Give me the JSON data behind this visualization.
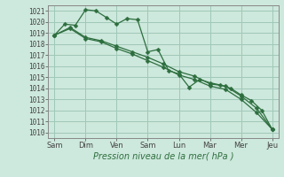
{
  "bg_color": "#cde8dc",
  "grid_color": "#a0c8b8",
  "line_color": "#2d6e3e",
  "xlabel": "Pression niveau de la mer( hPa )",
  "ylim": [
    1009.5,
    1021.5
  ],
  "yticks": [
    1010,
    1011,
    1012,
    1013,
    1014,
    1015,
    1016,
    1017,
    1018,
    1019,
    1020,
    1021
  ],
  "xtick_labels": [
    "Sam",
    "Dim",
    "Ven",
    "Sam",
    "Lun",
    "Mar",
    "Mer",
    "Jeu"
  ],
  "xtick_positions": [
    0,
    1,
    2,
    3,
    4,
    5,
    6,
    7
  ],
  "line1_x": [
    0,
    0.33,
    0.67,
    1.0,
    1.33,
    1.67,
    2.0,
    2.33,
    2.67,
    3.0,
    3.33,
    3.67,
    4.0,
    4.33,
    4.67,
    5.0,
    5.33,
    5.67,
    6.0,
    6.33,
    6.67,
    7.0
  ],
  "line1": [
    1018.8,
    1019.8,
    1019.7,
    1021.1,
    1021.0,
    1020.4,
    1019.8,
    1020.3,
    1020.2,
    1017.3,
    1017.5,
    1015.6,
    1015.3,
    1014.1,
    1014.8,
    1014.5,
    1014.3,
    1014.0,
    1013.4,
    1012.9,
    1012.0,
    1010.3
  ],
  "line2_x": [
    0,
    0.5,
    1.0,
    1.5,
    2.0,
    2.5,
    3.0,
    3.5,
    4.0,
    4.5,
    5.0,
    5.5,
    6.0,
    6.5,
    7.0
  ],
  "line2": [
    1018.8,
    1019.5,
    1018.6,
    1018.3,
    1017.8,
    1017.3,
    1016.8,
    1016.2,
    1015.5,
    1015.1,
    1014.4,
    1014.2,
    1013.3,
    1012.2,
    1010.3
  ],
  "line3_x": [
    0,
    0.5,
    1.0,
    1.5,
    2.0,
    2.5,
    3.0,
    3.5,
    4.0,
    4.5,
    5.0,
    5.5,
    6.0,
    6.5,
    7.0
  ],
  "line3": [
    1018.8,
    1019.4,
    1018.5,
    1018.2,
    1017.6,
    1017.1,
    1016.5,
    1015.9,
    1015.2,
    1014.8,
    1014.2,
    1013.9,
    1013.0,
    1011.8,
    1010.3
  ],
  "xlabel_color": "#2d6e3e",
  "tick_color": "#444444",
  "spine_color": "#888888"
}
